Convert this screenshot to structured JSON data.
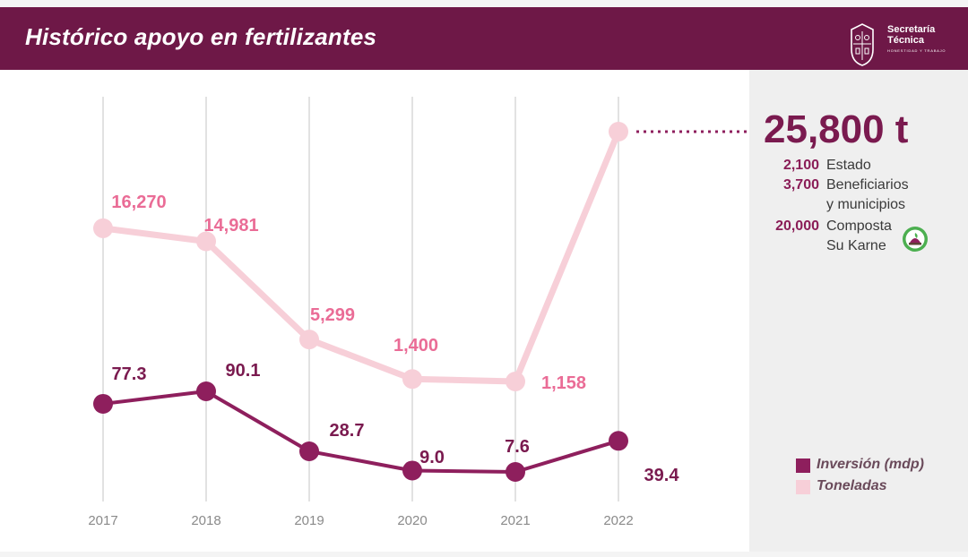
{
  "header": {
    "title": "Histórico apoyo en fertilizantes"
  },
  "logo": {
    "line1": "Secretaría",
    "line2": "Técnica",
    "tagline": "HONESTIDAD Y TRABAJO"
  },
  "summary": {
    "total": "25,800 t",
    "breakdown": [
      {
        "value": "2,100",
        "label": [
          "Estado"
        ]
      },
      {
        "value": "3,700",
        "label": [
          "Beneficiarios",
          "y municipios"
        ]
      },
      {
        "value": "20,000",
        "label": [
          "Composta",
          "Su Karne"
        ],
        "icon": "compost-leaf-icon"
      }
    ]
  },
  "legend": [
    {
      "label": "Inversión (mdp)",
      "color": "#8e1f5d"
    },
    {
      "label": "Toneladas",
      "color": "#f7cfd8"
    }
  ],
  "chart_data": {
    "type": "line",
    "categories": [
      "2017",
      "2018",
      "2019",
      "2020",
      "2021",
      "2022"
    ],
    "series": [
      {
        "name": "Toneladas",
        "values": [
          16270,
          14981,
          5299,
          1400,
          1158,
          25800
        ],
        "labels": [
          "16,270",
          "14,981",
          "5,299",
          "1,400",
          "1,158",
          ""
        ],
        "color": "#f7cfd8",
        "label_color": "#ea6c96"
      },
      {
        "name": "Inversión (mdp)",
        "values": [
          77.3,
          90.1,
          28.7,
          9.0,
          7.6,
          39.4
        ],
        "labels": [
          "77.3",
          "90.1",
          "28.7",
          "9.0",
          "7.6",
          "39.4"
        ],
        "color": "#8e1f5d",
        "label_color": "#7a1a4f"
      }
    ],
    "grid": "vertical",
    "legend_position": "right"
  }
}
